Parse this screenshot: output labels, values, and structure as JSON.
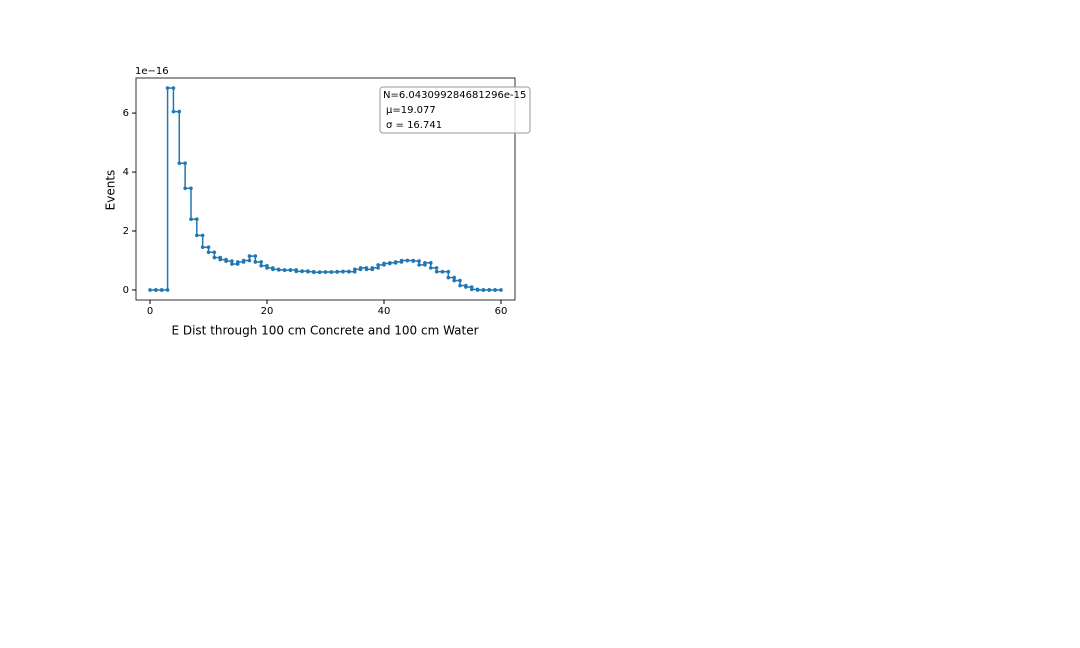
{
  "chart_data": {
    "type": "histogram",
    "xlabel": "E Dist through 100 cm Concrete and 100 cm Water",
    "ylabel": "Events",
    "y_offset_label": "1e−16",
    "bins": [
      0,
      1,
      2,
      3,
      4,
      5,
      6,
      7,
      8,
      9,
      10,
      11,
      12,
      13,
      14,
      15,
      16,
      17,
      18,
      19,
      20,
      21,
      22,
      23,
      24,
      25,
      26,
      27,
      28,
      29,
      30,
      31,
      32,
      33,
      34,
      35,
      36,
      37,
      38,
      39,
      40,
      41,
      42,
      43,
      44,
      45,
      46,
      47,
      48,
      49,
      50,
      51,
      52,
      53,
      54,
      55,
      56,
      57,
      58,
      59,
      60
    ],
    "values": [
      0,
      0,
      0,
      6.85,
      6.05,
      4.3,
      3.45,
      2.4,
      1.85,
      1.45,
      1.28,
      1.1,
      1.03,
      0.98,
      0.88,
      0.95,
      1.0,
      1.15,
      0.95,
      0.82,
      0.75,
      0.7,
      0.68,
      0.67,
      0.68,
      0.63,
      0.64,
      0.62,
      0.6,
      0.61,
      0.61,
      0.61,
      0.62,
      0.63,
      0.62,
      0.7,
      0.75,
      0.7,
      0.75,
      0.85,
      0.9,
      0.92,
      0.95,
      1.0,
      1.0,
      0.98,
      0.85,
      0.92,
      0.75,
      0.62,
      0.62,
      0.42,
      0.32,
      0.15,
      0.1,
      0.02,
      0,
      0,
      0,
      0
    ],
    "color": "#1f77b4",
    "xlim": [
      -2.4,
      62.4
    ],
    "xticks": [
      0,
      20,
      40,
      60
    ],
    "ylim": [
      -0.34,
      7.19
    ],
    "yticks": [
      0,
      2,
      4,
      6
    ],
    "legend": [
      "N=6.043099284681296e-15",
      "μ=19.077",
      "σ = 16.741"
    ],
    "legend_position": "upper right"
  }
}
